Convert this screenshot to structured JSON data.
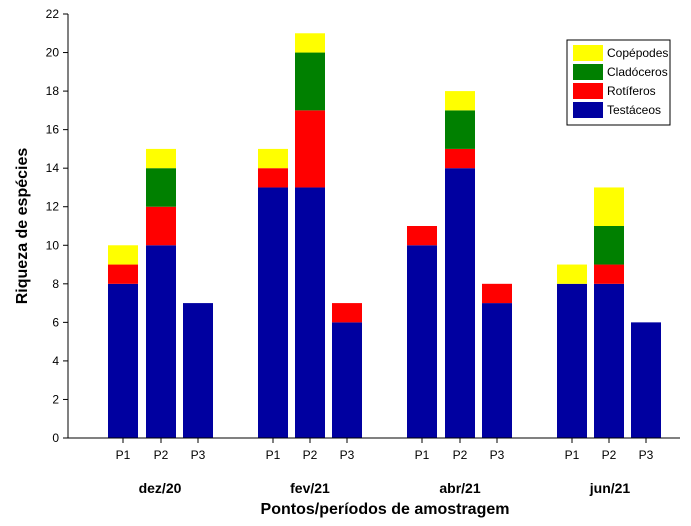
{
  "chart_data": {
    "type": "bar",
    "stacked": true,
    "xlabel": "Pontos/períodos de amostragem",
    "ylabel": "Riqueza de espécies",
    "ylim": [
      0,
      22
    ],
    "yticks": [
      0,
      2,
      4,
      6,
      8,
      10,
      12,
      14,
      16,
      18,
      20,
      22
    ],
    "grid": false,
    "legend_position": "top-right",
    "groups": [
      "dez/20",
      "fev/21",
      "abr/21",
      "jun/21"
    ],
    "categories": [
      "P1",
      "P2",
      "P3",
      "P1",
      "P2",
      "P3",
      "P1",
      "P2",
      "P3",
      "P1",
      "P2",
      "P3"
    ],
    "series": [
      {
        "name": "Testáceos",
        "color": "#0000a0",
        "values": [
          8,
          10,
          7,
          13,
          13,
          6,
          10,
          14,
          7,
          8,
          8,
          6
        ]
      },
      {
        "name": "Rotíferos",
        "color": "#ff0000",
        "values": [
          1,
          2,
          0,
          1,
          4,
          1,
          1,
          1,
          1,
          0,
          1,
          0
        ]
      },
      {
        "name": "Cladóceros",
        "color": "#008000",
        "values": [
          0,
          2,
          0,
          0,
          3,
          0,
          0,
          2,
          0,
          0,
          2,
          0
        ]
      },
      {
        "name": "Copépodes",
        "color": "#ffff00",
        "values": [
          1,
          1,
          0,
          1,
          1,
          0,
          0,
          1,
          0,
          1,
          2,
          0
        ]
      }
    ],
    "legend_order": [
      "Copépodes",
      "Cladóceros",
      "Rotíferos",
      "Testáceos"
    ]
  }
}
